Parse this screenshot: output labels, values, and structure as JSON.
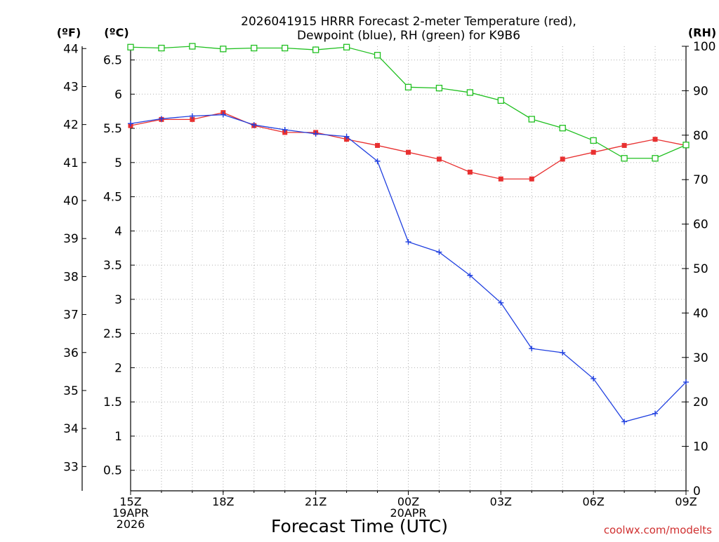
{
  "chart_data": {
    "type": "line",
    "title_line1": "2026041915 HRRR Forecast 2-meter Temperature (red),",
    "title_line2": "Dewpoint (blue), RH (green) for K9B6",
    "xlabel": "Forecast Time (UTC)",
    "credit": "coolwx.com/modelts",
    "unit_f": "(ºF)",
    "unit_c": "(ºC)",
    "unit_rh": "(RH)",
    "x_hours": [
      0,
      1,
      2,
      3,
      4,
      5,
      6,
      7,
      8,
      9,
      10,
      11,
      12,
      13,
      14,
      15,
      16,
      17,
      18
    ],
    "xlim": [
      0,
      18
    ],
    "x_ticks": [
      {
        "hour": 0,
        "lines": [
          "15Z",
          "19APR",
          "2026"
        ]
      },
      {
        "hour": 3,
        "lines": [
          "18Z"
        ]
      },
      {
        "hour": 6,
        "lines": [
          "21Z"
        ]
      },
      {
        "hour": 9,
        "lines": [
          "00Z",
          "20APR"
        ]
      },
      {
        "hour": 12,
        "lines": [
          "03Z"
        ]
      },
      {
        "hour": 15,
        "lines": [
          "06Z"
        ]
      },
      {
        "hour": 18,
        "lines": [
          "09Z"
        ]
      }
    ],
    "ylim_c": [
      0.2,
      6.7
    ],
    "ylim_f": [
      32.36,
      44.06
    ],
    "ylim_rh": [
      0,
      100
    ],
    "y_ticks_c": [
      "0.5",
      "1",
      "1.5",
      "2",
      "2.5",
      "3",
      "3.5",
      "4",
      "4.5",
      "5",
      "5.5",
      "6",
      "6.5"
    ],
    "y_ticks_f": [
      "33",
      "34",
      "35",
      "36",
      "37",
      "38",
      "39",
      "40",
      "41",
      "42",
      "43",
      "44"
    ],
    "y_ticks_rh": [
      "0",
      "10",
      "20",
      "30",
      "40",
      "50",
      "60",
      "70",
      "80",
      "90",
      "100"
    ],
    "series": [
      {
        "name": "Temperature",
        "unit": "C",
        "color": "#e83030",
        "marker": "filled-square",
        "values": [
          5.54,
          5.63,
          5.63,
          5.73,
          5.54,
          5.44,
          5.44,
          5.34,
          5.25,
          5.15,
          5.05,
          4.86,
          4.76,
          4.76,
          5.05,
          5.15,
          5.25,
          5.34,
          5.25
        ]
      },
      {
        "name": "Dewpoint",
        "unit": "C",
        "color": "#2040e0",
        "marker": "plus",
        "values": [
          5.57,
          5.64,
          5.68,
          5.7,
          5.55,
          5.48,
          5.42,
          5.38,
          5.02,
          3.84,
          3.69,
          3.35,
          2.95,
          2.28,
          2.22,
          1.84,
          1.21,
          1.33,
          1.79
        ]
      },
      {
        "name": "RH",
        "unit": "%",
        "color": "#20c020",
        "marker": "open-square",
        "values": [
          99.8,
          99.6,
          100,
          99.4,
          99.6,
          99.6,
          99.2,
          99.8,
          98.0,
          90.8,
          90.6,
          89.6,
          87.8,
          83.6,
          81.6,
          78.8,
          74.8,
          74.8,
          77.8
        ]
      }
    ]
  }
}
